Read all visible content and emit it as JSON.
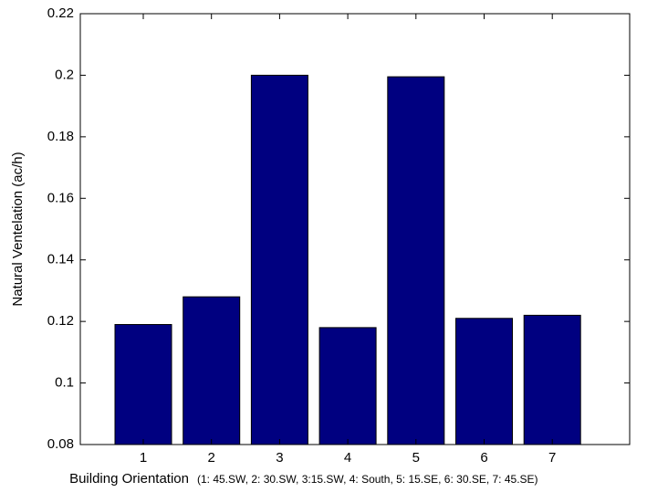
{
  "chart_data": {
    "type": "bar",
    "ylabel": "Natural Ventelation (ac/h)",
    "xlabel": "Building Orientation",
    "xlabel_note": "(1: 45.SW, 2: 30.SW, 3:15.SW, 4: South, 5: 15.SE, 6: 30.SE, 7: 45.SE)",
    "categories": [
      "1",
      "2",
      "3",
      "4",
      "5",
      "6",
      "7"
    ],
    "values": [
      0.119,
      0.128,
      0.2,
      0.118,
      0.1995,
      0.121,
      0.122
    ],
    "color": "#000080",
    "ylim": [
      0.08,
      0.22
    ],
    "yticks": [
      0.08,
      0.1,
      0.12,
      0.14,
      0.16,
      0.18,
      0.2,
      0.22
    ],
    "grid": false
  }
}
